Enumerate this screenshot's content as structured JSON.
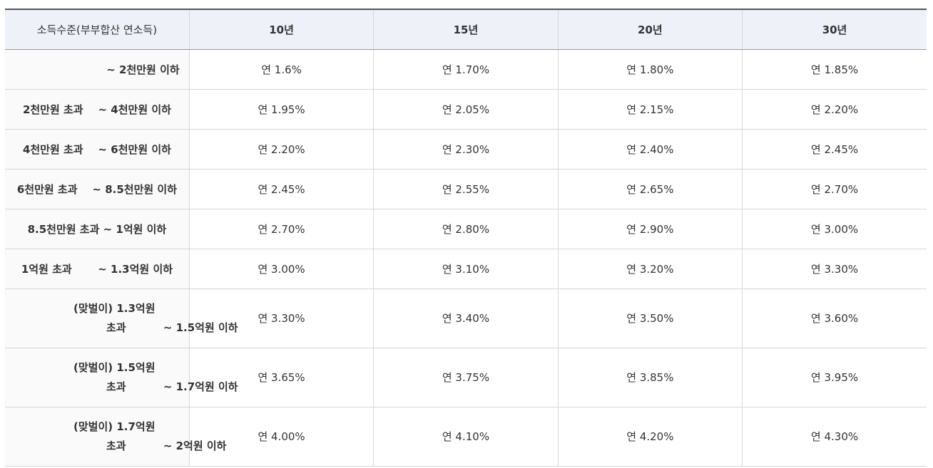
{
  "table": {
    "header": [
      "소득수준(부부합산 연소득)",
      "10년",
      "15년",
      "20년",
      "30년"
    ],
    "rows": [
      [
        [
          "~ 2천만원 이하"
        ],
        "연 1.6%",
        "연 1.70%",
        "연 1.80%",
        "연 1.85%"
      ],
      [
        [
          "2천만원 초과    ~ 4천만원 이하"
        ],
        "연 1.95%",
        "연 2.05%",
        "연 2.15%",
        "연 2.20%"
      ],
      [
        [
          "4천만원 초과    ~ 6천만원 이하"
        ],
        "연 2.20%",
        "연 2.30%",
        "연 2.40%",
        "연 2.45%"
      ],
      [
        [
          "6천만원 초과    ~ 8.5천만원 이하"
        ],
        "연 2.45%",
        "연 2.55%",
        "연 2.65%",
        "연 2.70%"
      ],
      [
        [
          "8.5천만원 초과 ~ 1억원 이하"
        ],
        "연 2.70%",
        "연 2.80%",
        "연 2.90%",
        "연 3.00%"
      ],
      [
        [
          "1억원 초과       ~ 1.3억원 이하"
        ],
        "연 3.00%",
        "연 3.10%",
        "연 3.20%",
        "연 3.30%"
      ],
      [
        [
          "(맞벌이) 1.3억원",
          "초과          ~ 1.5억원 이하"
        ],
        "연 3.30%",
        "연 3.40%",
        "연 3.50%",
        "연 3.60%"
      ],
      [
        [
          "(맞벌이) 1.5억원",
          "초과          ~ 1.7억원 이하"
        ],
        "연 3.65%",
        "연 3.75%",
        "연 3.85%",
        "연 3.95%"
      ],
      [
        [
          "(맞벌이) 1.7억원",
          "초과          ~ 2억원 이하"
        ],
        "연 4.00%",
        "연 4.10%",
        "연 4.20%",
        "연 4.30%"
      ]
    ]
  }
}
